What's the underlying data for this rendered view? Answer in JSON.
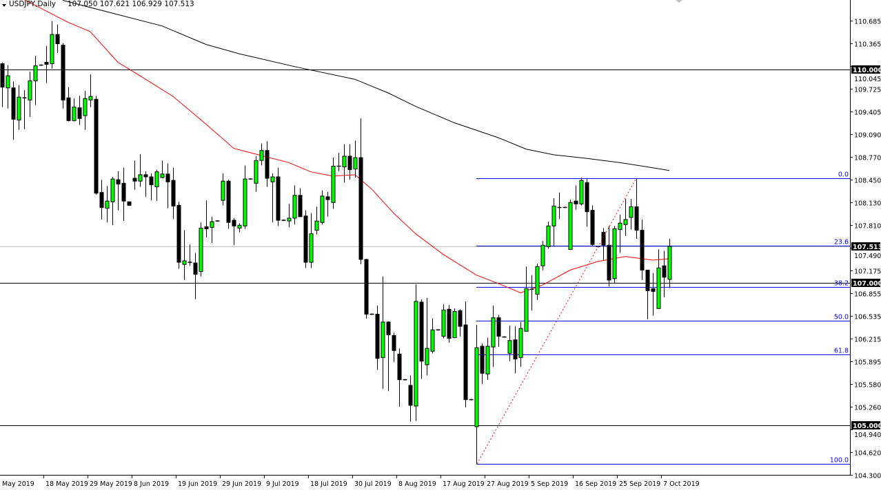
{
  "header": {
    "symbol_timeframe": "USDJPY,Daily",
    "ohlc_text": "107.050 107.621 106.929 107.513"
  },
  "colors": {
    "bull_candle": "#00ff00",
    "bear_candle": "#000000",
    "ma_fast": "#ff0000",
    "ma_slow": "#000000",
    "fibonacci": "#0000ff",
    "trendline": "#ff0000",
    "bid_line": "#c0c0c0"
  },
  "chart_data": {
    "type": "candlestick",
    "symbol": "USDJPY",
    "timeframe": "Daily",
    "ylim": [
      104.3,
      110.97
    ],
    "y_ticks": [
      "110.685",
      "110.365",
      "110.045",
      "109.725",
      "109.405",
      "109.090",
      "108.770",
      "108.450",
      "108.130",
      "107.810",
      "107.490",
      "107.175",
      "106.855",
      "106.535",
      "106.215",
      "105.895",
      "105.580",
      "105.260",
      "104.940",
      "104.620",
      "104.300"
    ],
    "x_tick_labels": [
      "May 2019",
      "18 May 2019",
      "29 May 2019",
      "8 Jun 2019",
      "19 Jun 2019",
      "29 Jun 2019",
      "9 Jul 2019",
      "18 Jul 2019",
      "30 Jul 2019",
      "8 Aug 2019",
      "17 Aug 2019",
      "27 Aug 2019",
      "5 Sep 2019",
      "16 Sep 2019",
      "25 Sep 2019",
      "7 Oct 2019"
    ],
    "candles_ohlc": [
      [
        110.08,
        110.1,
        109.47,
        109.75
      ],
      [
        109.74,
        110.06,
        109.45,
        109.91
      ],
      [
        109.74,
        109.83,
        109.01,
        109.3
      ],
      [
        109.29,
        109.78,
        109.15,
        109.61
      ],
      [
        109.59,
        109.71,
        109.16,
        109.6
      ],
      [
        109.57,
        109.97,
        109.33,
        109.84
      ],
      [
        109.84,
        110.19,
        109.5,
        110.05
      ],
      [
        110.06,
        110.07,
        110.05,
        110.06
      ],
      [
        110.1,
        110.33,
        109.81,
        110.07
      ],
      [
        110.08,
        110.68,
        110.01,
        110.49
      ],
      [
        110.49,
        110.63,
        110.23,
        110.36
      ],
      [
        110.34,
        110.37,
        109.45,
        109.57
      ],
      [
        109.6,
        109.75,
        109.27,
        109.28
      ],
      [
        109.28,
        109.59,
        109.27,
        109.47
      ],
      [
        109.46,
        109.63,
        109.22,
        109.31
      ],
      [
        109.35,
        109.7,
        109.15,
        109.59
      ],
      [
        109.57,
        109.93,
        109.47,
        109.62
      ],
      [
        109.58,
        109.63,
        108.24,
        108.26
      ],
      [
        108.27,
        108.45,
        107.89,
        108.06
      ],
      [
        108.05,
        108.36,
        107.85,
        108.15
      ],
      [
        108.14,
        108.49,
        107.81,
        108.46
      ],
      [
        108.45,
        108.57,
        108.02,
        108.39
      ],
      [
        108.4,
        108.62,
        107.87,
        108.15
      ],
      [
        108.14,
        108.14,
        108.09,
        108.09
      ],
      [
        108.47,
        108.72,
        108.31,
        108.43
      ],
      [
        108.43,
        108.81,
        108.35,
        108.52
      ],
      [
        108.52,
        108.57,
        108.21,
        108.49
      ],
      [
        108.49,
        108.54,
        108.16,
        108.38
      ],
      [
        108.35,
        108.59,
        108.15,
        108.56
      ],
      [
        108.48,
        108.72,
        108.47,
        108.53
      ],
      [
        108.53,
        108.68,
        108.05,
        108.42
      ],
      [
        108.44,
        108.62,
        107.9,
        108.08
      ],
      [
        108.09,
        108.14,
        107.2,
        107.29
      ],
      [
        107.26,
        107.74,
        107.04,
        107.31
      ],
      [
        107.29,
        107.54,
        107.24,
        107.29
      ],
      [
        107.28,
        107.42,
        106.77,
        107.12
      ],
      [
        107.16,
        107.85,
        107.09,
        107.77
      ],
      [
        107.79,
        108.16,
        107.64,
        107.76
      ],
      [
        107.78,
        107.93,
        107.56,
        107.86
      ],
      [
        107.87,
        107.88,
        107.86,
        107.87
      ],
      [
        108.16,
        108.54,
        108.09,
        108.43
      ],
      [
        108.43,
        108.45,
        107.76,
        107.85
      ],
      [
        107.88,
        107.91,
        107.53,
        107.8
      ],
      [
        107.77,
        107.84,
        107.71,
        107.81
      ],
      [
        107.8,
        108.65,
        107.76,
        108.46
      ],
      [
        108.46,
        108.47,
        108.45,
        108.46
      ],
      [
        108.4,
        108.78,
        108.28,
        108.72
      ],
      [
        108.72,
        108.96,
        108.65,
        108.86
      ],
      [
        108.86,
        108.99,
        108.35,
        108.47
      ],
      [
        108.42,
        108.54,
        107.85,
        108.49
      ],
      [
        108.49,
        108.62,
        107.8,
        107.88
      ],
      [
        107.88,
        107.89,
        107.87,
        107.88
      ],
      [
        107.87,
        108.11,
        107.78,
        107.91
      ],
      [
        107.91,
        108.37,
        107.82,
        108.23
      ],
      [
        108.23,
        108.33,
        107.93,
        107.93
      ],
      [
        107.94,
        108.02,
        107.21,
        107.29
      ],
      [
        107.29,
        107.98,
        107.21,
        107.69
      ],
      [
        107.74,
        108.07,
        107.68,
        107.87
      ],
      [
        107.85,
        108.3,
        107.82,
        108.22
      ],
      [
        108.21,
        108.28,
        107.93,
        108.17
      ],
      [
        108.13,
        108.76,
        108.04,
        108.64
      ],
      [
        108.64,
        108.83,
        108.57,
        108.63
      ],
      [
        108.63,
        108.95,
        108.41,
        108.78
      ],
      [
        108.78,
        108.95,
        108.45,
        108.59
      ],
      [
        108.6,
        109.0,
        108.48,
        108.76
      ],
      [
        108.76,
        109.31,
        107.26,
        107.33
      ],
      [
        107.33,
        107.34,
        106.5,
        106.56
      ],
      [
        106.56,
        106.57,
        106.55,
        106.56
      ],
      [
        106.56,
        106.68,
        105.78,
        105.94
      ],
      [
        105.95,
        107.09,
        105.51,
        106.45
      ],
      [
        106.45,
        106.46,
        105.48,
        106.27
      ],
      [
        106.26,
        106.3,
        105.89,
        106.05
      ],
      [
        106.0,
        106.08,
        105.26,
        105.64
      ],
      [
        105.64,
        105.65,
        105.63,
        105.64
      ],
      [
        105.56,
        105.7,
        105.05,
        105.28
      ],
      [
        105.27,
        106.98,
        105.06,
        106.74
      ],
      [
        106.73,
        106.77,
        105.65,
        105.9
      ],
      [
        105.85,
        106.79,
        105.7,
        106.08
      ],
      [
        106.04,
        106.5,
        106.01,
        106.34
      ],
      [
        106.34,
        106.35,
        106.33,
        106.34
      ],
      [
        106.25,
        106.7,
        106.22,
        106.62
      ],
      [
        106.63,
        106.69,
        106.16,
        106.22
      ],
      [
        106.23,
        106.64,
        106.23,
        106.6
      ],
      [
        106.61,
        106.63,
        106.25,
        106.39
      ],
      [
        106.41,
        106.74,
        105.25,
        105.36
      ],
      [
        105.36,
        105.37,
        105.35,
        105.36
      ],
      [
        104.98,
        106.41,
        104.46,
        106.09
      ],
      [
        106.11,
        106.15,
        105.58,
        105.73
      ],
      [
        105.72,
        106.23,
        105.64,
        106.11
      ],
      [
        106.1,
        106.68,
        105.82,
        106.51
      ],
      [
        106.51,
        106.55,
        106.1,
        106.25
      ],
      [
        106.24,
        106.25,
        106.23,
        106.24
      ],
      [
        106.01,
        106.4,
        105.9,
        106.19
      ],
      [
        106.2,
        106.39,
        105.73,
        105.93
      ],
      [
        105.95,
        106.45,
        105.82,
        106.36
      ],
      [
        106.32,
        107.23,
        106.32,
        106.92
      ],
      [
        106.91,
        107.11,
        106.61,
        106.9
      ],
      [
        106.84,
        107.27,
        106.76,
        107.23
      ],
      [
        107.24,
        107.59,
        107.18,
        107.53
      ],
      [
        107.51,
        107.86,
        107.48,
        107.8
      ],
      [
        107.8,
        108.19,
        107.52,
        108.08
      ],
      [
        108.05,
        108.27,
        107.9,
        108.06
      ],
      [
        108.06,
        108.07,
        108.05,
        108.06
      ],
      [
        107.47,
        108.17,
        107.47,
        108.13
      ],
      [
        108.15,
        108.37,
        108.03,
        108.11
      ],
      [
        108.11,
        108.48,
        108.09,
        108.44
      ],
      [
        108.41,
        108.46,
        107.79,
        108.0
      ],
      [
        108.02,
        108.09,
        107.52,
        107.54
      ],
      [
        107.51,
        107.52,
        107.5,
        107.51
      ],
      [
        107.71,
        107.77,
        107.31,
        107.53
      ],
      [
        107.53,
        107.8,
        106.95,
        107.04
      ],
      [
        107.06,
        107.8,
        106.99,
        107.76
      ],
      [
        107.75,
        107.96,
        107.42,
        107.84
      ],
      [
        107.82,
        108.18,
        107.66,
        107.89
      ],
      [
        107.92,
        108.18,
        107.75,
        108.07
      ],
      [
        108.07,
        108.47,
        107.62,
        107.74
      ],
      [
        107.74,
        107.89,
        107.04,
        107.18
      ],
      [
        107.18,
        107.18,
        106.49,
        106.89
      ],
      [
        106.92,
        107.14,
        106.54,
        106.88
      ],
      [
        106.64,
        107.47,
        106.64,
        107.21
      ],
      [
        107.24,
        107.45,
        106.8,
        107.08
      ],
      [
        107.05,
        107.621,
        106.929,
        107.513
      ]
    ],
    "moving_averages": [
      {
        "color": "#ff0000",
        "points": [
          [
            4,
            110.98
          ],
          [
            9,
            110.78
          ],
          [
            12,
            110.66
          ],
          [
            16,
            110.53
          ],
          [
            21,
            110.1
          ],
          [
            25,
            109.91
          ],
          [
            31,
            109.62
          ],
          [
            37,
            109.23
          ],
          [
            42,
            108.89
          ],
          [
            46,
            108.81
          ],
          [
            52,
            108.69
          ],
          [
            56,
            108.56
          ],
          [
            60,
            108.5
          ],
          [
            64,
            108.52
          ],
          [
            67,
            108.32
          ],
          [
            71,
            107.98
          ],
          [
            75,
            107.69
          ],
          [
            80,
            107.4
          ],
          [
            86,
            107.11
          ],
          [
            91,
            106.96
          ],
          [
            94,
            106.86
          ],
          [
            98,
            106.97
          ],
          [
            103,
            107.18
          ],
          [
            108,
            107.3
          ],
          [
            113,
            107.37
          ],
          [
            118,
            107.32
          ],
          [
            121,
            107.34
          ]
        ]
      },
      {
        "color": "#000000",
        "points": [
          [
            11,
            110.97
          ],
          [
            29,
            110.61
          ],
          [
            37,
            110.35
          ],
          [
            43,
            110.22
          ],
          [
            53,
            110.04
          ],
          [
            64,
            109.86
          ],
          [
            70,
            109.67
          ],
          [
            75,
            109.48
          ],
          [
            82,
            109.25
          ],
          [
            90,
            109.04
          ],
          [
            95,
            108.88
          ],
          [
            100,
            108.8
          ],
          [
            106,
            108.75
          ],
          [
            112,
            108.69
          ],
          [
            117,
            108.63
          ],
          [
            121,
            108.58
          ]
        ]
      }
    ],
    "horizontal_levels": [
      {
        "price": 110.0,
        "label": "110.000"
      },
      {
        "price": 107.0,
        "label": "107.000"
      },
      {
        "price": 105.0,
        "label": "105.000"
      }
    ],
    "bid": {
      "price": 107.513,
      "label": "107.513"
    },
    "fibonacci": {
      "high": 108.47,
      "low": 104.46,
      "levels": [
        {
          "ratio": 0.0,
          "label": "0.0"
        },
        {
          "ratio": 0.236,
          "label": "23.6"
        },
        {
          "ratio": 0.382,
          "label": "38.2"
        },
        {
          "ratio": 0.5,
          "label": "50.0"
        },
        {
          "ratio": 0.618,
          "label": "61.8"
        },
        {
          "ratio": 1.0,
          "label": "100.0"
        }
      ]
    },
    "trendline": {
      "from": [
        86,
        104.46
      ],
      "to": [
        115,
        108.47
      ],
      "style": "dotted"
    }
  }
}
